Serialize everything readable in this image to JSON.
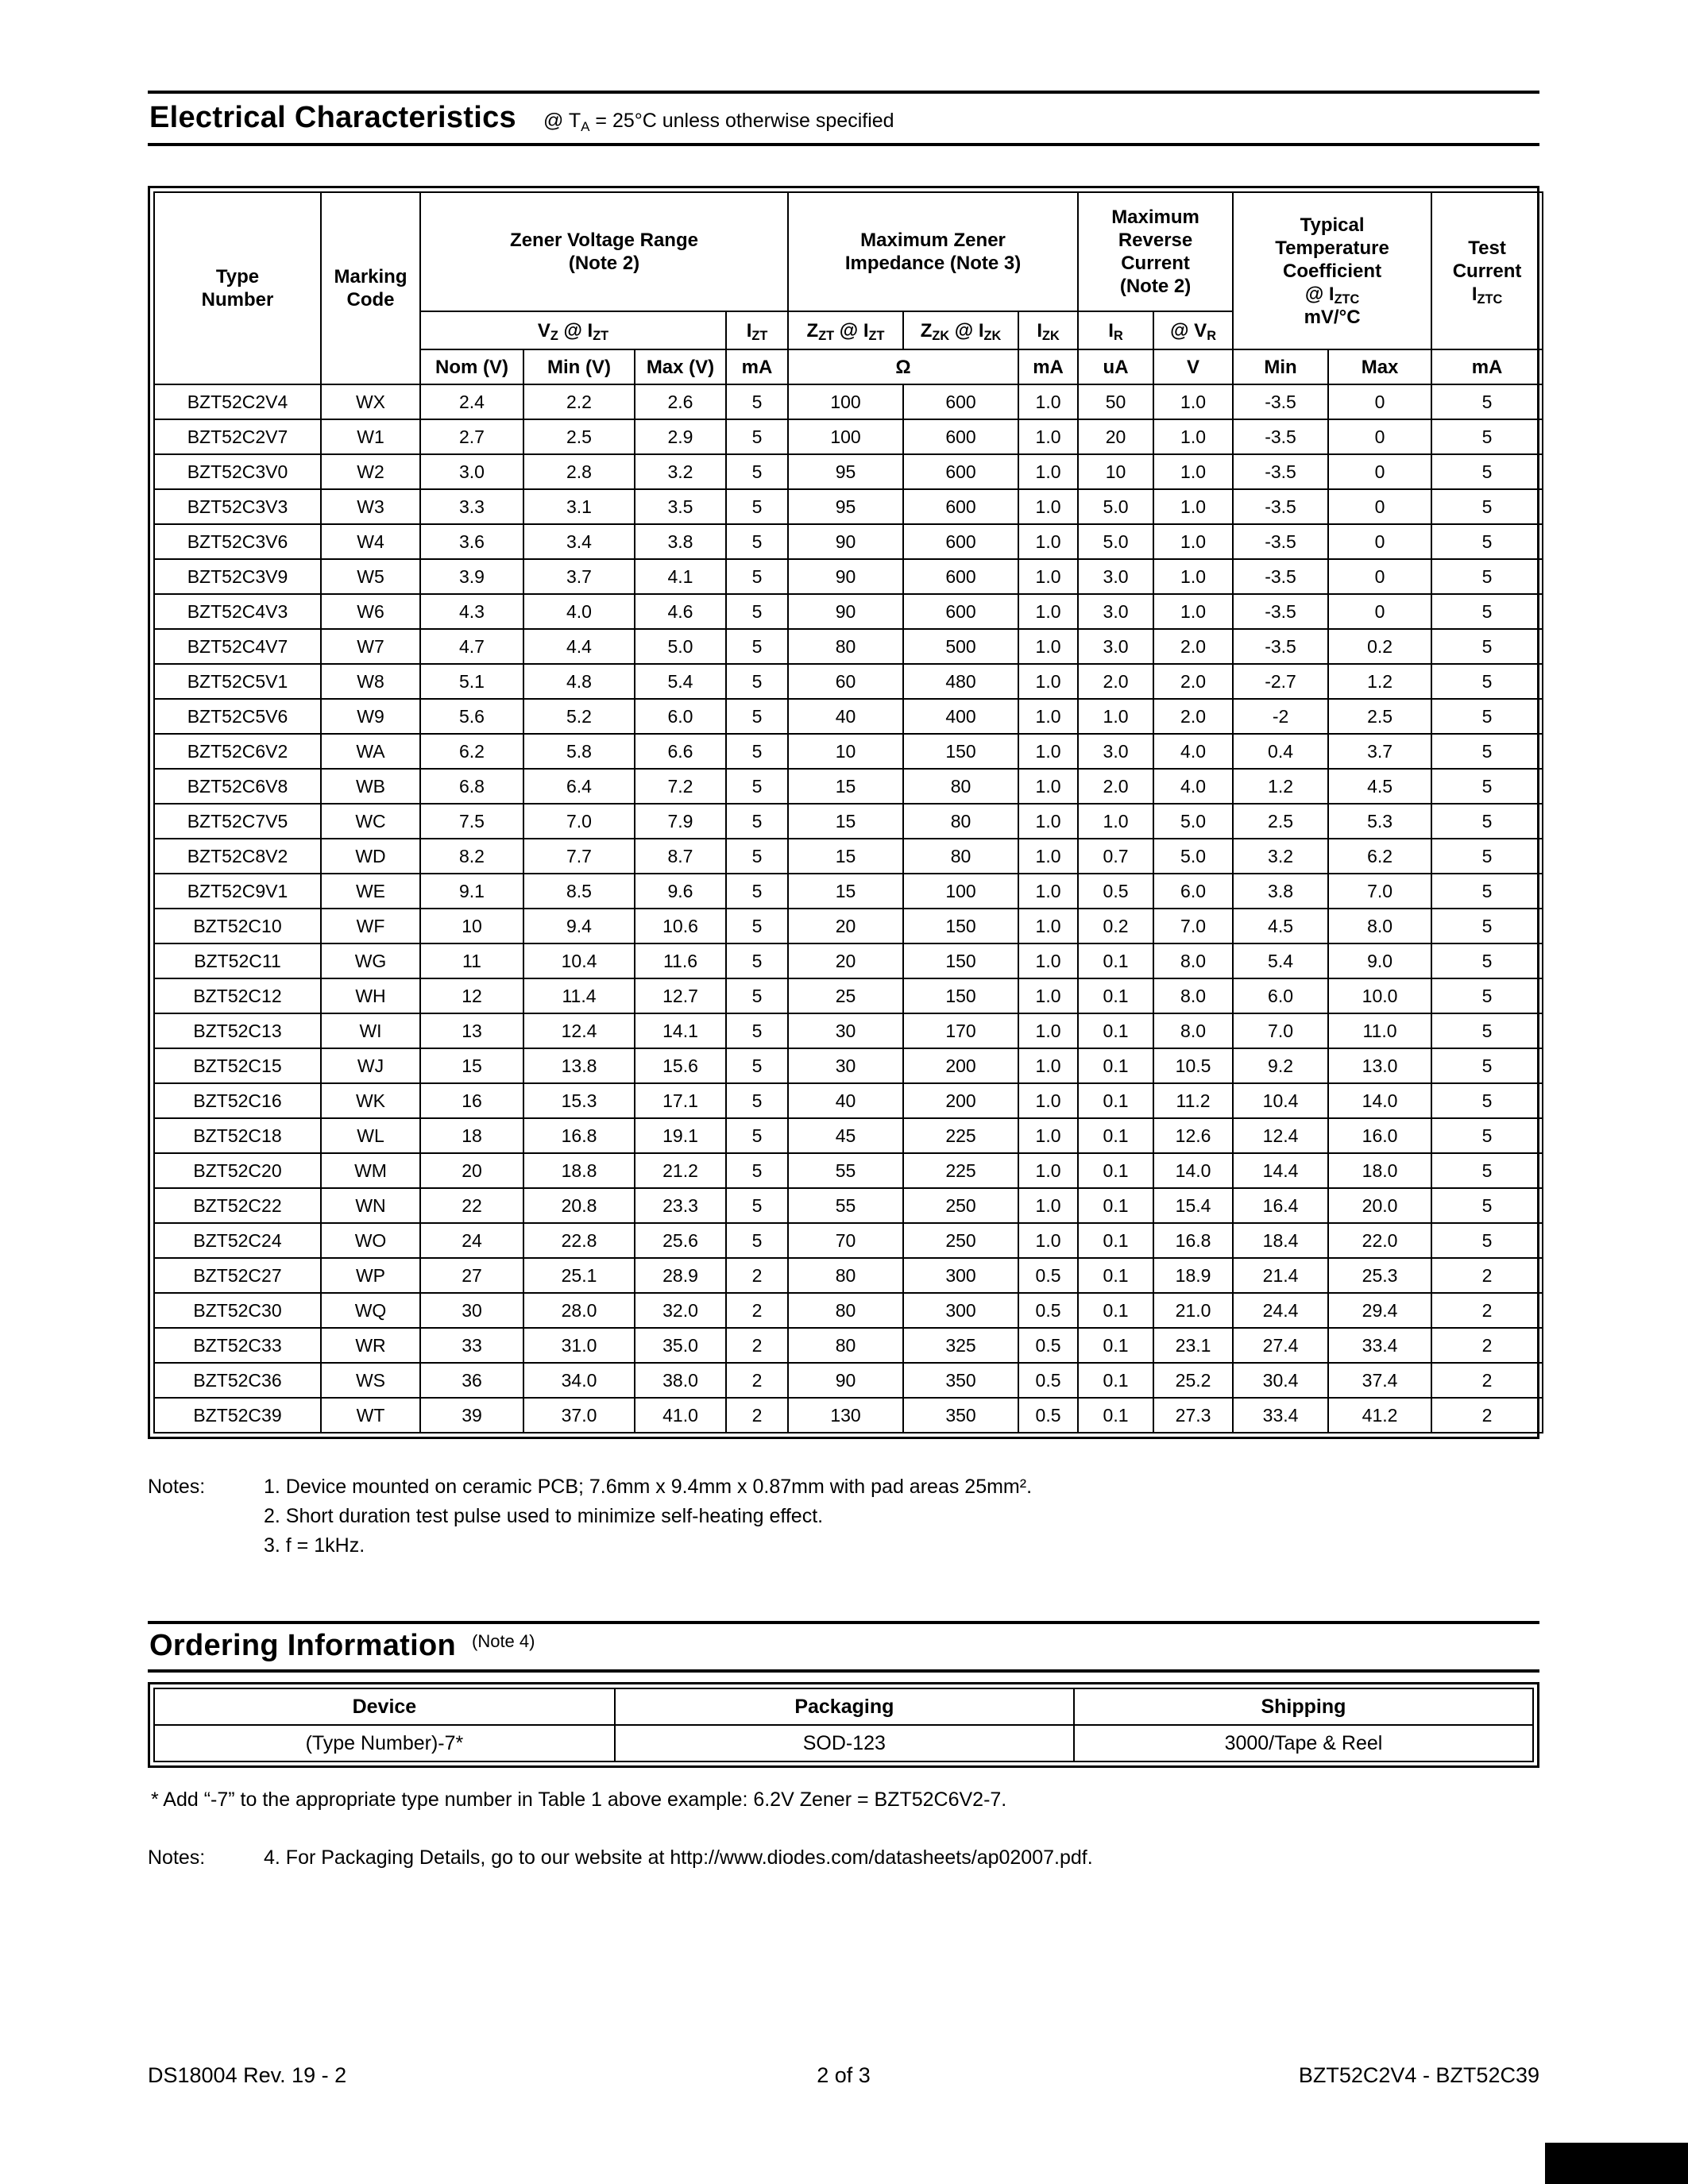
{
  "electrical": {
    "title": "Electrical Characteristics",
    "subtitle_html": "@ T<sub>A</sub> = 25°C unless otherwise specified"
  },
  "electrical_table": {
    "headers": {
      "type_number": "Type\nNumber",
      "marking_code": "Marking\nCode",
      "zener_voltage_range": "Zener Voltage Range\n(Note 2)",
      "max_zener_impedance": "Maximum Zener\nImpedance (Note 3)",
      "max_reverse_current": "Maximum\nReverse\nCurrent\n(Note 2)",
      "typ_temp_coeff_html": "Typical<br>Temperature<br>Coefficient<br>@ I<sub>ZTC</sub><br>mV/°C",
      "test_current_html": "Test<br>Current<br>I<sub>ZTC</sub>"
    },
    "sub_headers": {
      "vz_html": "V<sub>Z</sub> @ I<sub>ZT</sub>",
      "izt_html": "I<sub>ZT</sub>",
      "zzt_html": "Z<sub>ZT</sub> @ I<sub>ZT</sub>",
      "zzk_html": "Z<sub>ZK</sub> @ I<sub>ZK</sub>",
      "izk_html": "I<sub>ZK</sub>",
      "ir_html": "I<sub>R</sub>",
      "vr_html": "@ V<sub>R</sub>"
    },
    "units": [
      "Nom (V)",
      "Min (V)",
      "Max (V)",
      "mA",
      "Ω",
      "mA",
      "uA",
      "V",
      "Min",
      "Max",
      "mA"
    ],
    "rows": [
      [
        "BZT52C2V4",
        "WX",
        "2.4",
        "2.2",
        "2.6",
        "5",
        "100",
        "600",
        "1.0",
        "50",
        "1.0",
        "-3.5",
        "0",
        "5"
      ],
      [
        "BZT52C2V7",
        "W1",
        "2.7",
        "2.5",
        "2.9",
        "5",
        "100",
        "600",
        "1.0",
        "20",
        "1.0",
        "-3.5",
        "0",
        "5"
      ],
      [
        "BZT52C3V0",
        "W2",
        "3.0",
        "2.8",
        "3.2",
        "5",
        "95",
        "600",
        "1.0",
        "10",
        "1.0",
        "-3.5",
        "0",
        "5"
      ],
      [
        "BZT52C3V3",
        "W3",
        "3.3",
        "3.1",
        "3.5",
        "5",
        "95",
        "600",
        "1.0",
        "5.0",
        "1.0",
        "-3.5",
        "0",
        "5"
      ],
      [
        "BZT52C3V6",
        "W4",
        "3.6",
        "3.4",
        "3.8",
        "5",
        "90",
        "600",
        "1.0",
        "5.0",
        "1.0",
        "-3.5",
        "0",
        "5"
      ],
      [
        "BZT52C3V9",
        "W5",
        "3.9",
        "3.7",
        "4.1",
        "5",
        "90",
        "600",
        "1.0",
        "3.0",
        "1.0",
        "-3.5",
        "0",
        "5"
      ],
      [
        "BZT52C4V3",
        "W6",
        "4.3",
        "4.0",
        "4.6",
        "5",
        "90",
        "600",
        "1.0",
        "3.0",
        "1.0",
        "-3.5",
        "0",
        "5"
      ],
      [
        "BZT52C4V7",
        "W7",
        "4.7",
        "4.4",
        "5.0",
        "5",
        "80",
        "500",
        "1.0",
        "3.0",
        "2.0",
        "-3.5",
        "0.2",
        "5"
      ],
      [
        "BZT52C5V1",
        "W8",
        "5.1",
        "4.8",
        "5.4",
        "5",
        "60",
        "480",
        "1.0",
        "2.0",
        "2.0",
        "-2.7",
        "1.2",
        "5"
      ],
      [
        "BZT52C5V6",
        "W9",
        "5.6",
        "5.2",
        "6.0",
        "5",
        "40",
        "400",
        "1.0",
        "1.0",
        "2.0",
        "-2",
        "2.5",
        "5"
      ],
      [
        "BZT52C6V2",
        "WA",
        "6.2",
        "5.8",
        "6.6",
        "5",
        "10",
        "150",
        "1.0",
        "3.0",
        "4.0",
        "0.4",
        "3.7",
        "5"
      ],
      [
        "BZT52C6V8",
        "WB",
        "6.8",
        "6.4",
        "7.2",
        "5",
        "15",
        "80",
        "1.0",
        "2.0",
        "4.0",
        "1.2",
        "4.5",
        "5"
      ],
      [
        "BZT52C7V5",
        "WC",
        "7.5",
        "7.0",
        "7.9",
        "5",
        "15",
        "80",
        "1.0",
        "1.0",
        "5.0",
        "2.5",
        "5.3",
        "5"
      ],
      [
        "BZT52C8V2",
        "WD",
        "8.2",
        "7.7",
        "8.7",
        "5",
        "15",
        "80",
        "1.0",
        "0.7",
        "5.0",
        "3.2",
        "6.2",
        "5"
      ],
      [
        "BZT52C9V1",
        "WE",
        "9.1",
        "8.5",
        "9.6",
        "5",
        "15",
        "100",
        "1.0",
        "0.5",
        "6.0",
        "3.8",
        "7.0",
        "5"
      ],
      [
        "BZT52C10",
        "WF",
        "10",
        "9.4",
        "10.6",
        "5",
        "20",
        "150",
        "1.0",
        "0.2",
        "7.0",
        "4.5",
        "8.0",
        "5"
      ],
      [
        "BZT52C11",
        "WG",
        "11",
        "10.4",
        "11.6",
        "5",
        "20",
        "150",
        "1.0",
        "0.1",
        "8.0",
        "5.4",
        "9.0",
        "5"
      ],
      [
        "BZT52C12",
        "WH",
        "12",
        "11.4",
        "12.7",
        "5",
        "25",
        "150",
        "1.0",
        "0.1",
        "8.0",
        "6.0",
        "10.0",
        "5"
      ],
      [
        "BZT52C13",
        "WI",
        "13",
        "12.4",
        "14.1",
        "5",
        "30",
        "170",
        "1.0",
        "0.1",
        "8.0",
        "7.0",
        "11.0",
        "5"
      ],
      [
        "BZT52C15",
        "WJ",
        "15",
        "13.8",
        "15.6",
        "5",
        "30",
        "200",
        "1.0",
        "0.1",
        "10.5",
        "9.2",
        "13.0",
        "5"
      ],
      [
        "BZT52C16",
        "WK",
        "16",
        "15.3",
        "17.1",
        "5",
        "40",
        "200",
        "1.0",
        "0.1",
        "11.2",
        "10.4",
        "14.0",
        "5"
      ],
      [
        "BZT52C18",
        "WL",
        "18",
        "16.8",
        "19.1",
        "5",
        "45",
        "225",
        "1.0",
        "0.1",
        "12.6",
        "12.4",
        "16.0",
        "5"
      ],
      [
        "BZT52C20",
        "WM",
        "20",
        "18.8",
        "21.2",
        "5",
        "55",
        "225",
        "1.0",
        "0.1",
        "14.0",
        "14.4",
        "18.0",
        "5"
      ],
      [
        "BZT52C22",
        "WN",
        "22",
        "20.8",
        "23.3",
        "5",
        "55",
        "250",
        "1.0",
        "0.1",
        "15.4",
        "16.4",
        "20.0",
        "5"
      ],
      [
        "BZT52C24",
        "WO",
        "24",
        "22.8",
        "25.6",
        "5",
        "70",
        "250",
        "1.0",
        "0.1",
        "16.8",
        "18.4",
        "22.0",
        "5"
      ],
      [
        "BZT52C27",
        "WP",
        "27",
        "25.1",
        "28.9",
        "2",
        "80",
        "300",
        "0.5",
        "0.1",
        "18.9",
        "21.4",
        "25.3",
        "2"
      ],
      [
        "BZT52C30",
        "WQ",
        "30",
        "28.0",
        "32.0",
        "2",
        "80",
        "300",
        "0.5",
        "0.1",
        "21.0",
        "24.4",
        "29.4",
        "2"
      ],
      [
        "BZT52C33",
        "WR",
        "33",
        "31.0",
        "35.0",
        "2",
        "80",
        "325",
        "0.5",
        "0.1",
        "23.1",
        "27.4",
        "33.4",
        "2"
      ],
      [
        "BZT52C36",
        "WS",
        "36",
        "34.0",
        "38.0",
        "2",
        "90",
        "350",
        "0.5",
        "0.1",
        "25.2",
        "30.4",
        "37.4",
        "2"
      ],
      [
        "BZT52C39",
        "WT",
        "39",
        "37.0",
        "41.0",
        "2",
        "130",
        "350",
        "0.5",
        "0.1",
        "27.3",
        "33.4",
        "41.2",
        "2"
      ]
    ]
  },
  "notes": {
    "label": "Notes:",
    "items": [
      "1. Device mounted on ceramic PCB; 7.6mm x 9.4mm x 0.87mm with pad areas 25mm².",
      "2. Short duration test pulse used to minimize self-heating effect.",
      "3. f = 1kHz."
    ]
  },
  "ordering": {
    "title": "Ordering Information",
    "title_note": "(Note 4)",
    "headers": [
      "Device",
      "Packaging",
      "Shipping"
    ],
    "row": [
      "(Type Number)-7*",
      "SOD-123",
      "3000/Tape & Reel"
    ],
    "footnote": "* Add “-7” to the appropriate type number in Table 1 above example: 6.2V Zener = BZT52C6V2-7.",
    "note_label": "Notes:",
    "note": "4.   For Packaging Details, go to our website at http://www.diodes.com/datasheets/ap02007.pdf."
  },
  "footer": {
    "left": "DS18004 Rev. 19 - 2",
    "center": "2 of 3",
    "right": "BZT52C2V4 - BZT52C39"
  }
}
